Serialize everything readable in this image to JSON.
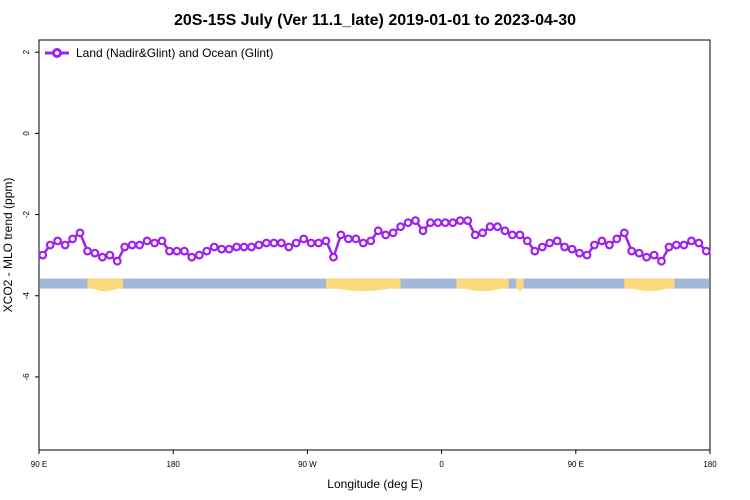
{
  "chart_data": {
    "type": "line",
    "title": "20S-15S July (Ver 11.1_late)   2019-01-01 to 2023-04-30",
    "xlabel": "Longitude (deg E)",
    "ylabel": "XCO2 - MLO trend (ppm)",
    "xlim": [
      90,
      450
    ],
    "ylim": [
      -7.8,
      2.3
    ],
    "x_ticks": [
      {
        "value": 90,
        "label": "90 E"
      },
      {
        "value": 162,
        "label": "180"
      },
      {
        "value": 234,
        "label": "90 W"
      },
      {
        "value": 306,
        "label": "0"
      },
      {
        "value": 378,
        "label": "90 E"
      },
      {
        "value": 450,
        "label": "180"
      }
    ],
    "y_ticks": [
      2,
      0,
      -2,
      -4,
      -6
    ],
    "legend": {
      "position": "top-left",
      "label": "Land (Nadir&Glint) and Ocean (Glint)"
    },
    "series": [
      {
        "name": "Land (Nadir&Glint) and Ocean (Glint)",
        "color": "#a020f0",
        "x": [
          92,
          96,
          100,
          104,
          108,
          112,
          116,
          120,
          124,
          128,
          132,
          136,
          140,
          144,
          148,
          152,
          156,
          160,
          164,
          168,
          172,
          176,
          180,
          184,
          188,
          192,
          196,
          200,
          204,
          208,
          212,
          216,
          220,
          224,
          228,
          232,
          236,
          240,
          244,
          248,
          252,
          256,
          260,
          264,
          268,
          272,
          276,
          280,
          284,
          288,
          292,
          296,
          300,
          304,
          308,
          312,
          316,
          320,
          324,
          328,
          332,
          336,
          340,
          344,
          348,
          352,
          356,
          360,
          364,
          368,
          372,
          376,
          380,
          384,
          388,
          392,
          396,
          400,
          404,
          408,
          412,
          416,
          420,
          424,
          428,
          432,
          436,
          440,
          444,
          448
        ],
        "y": [
          -3.0,
          -2.75,
          -2.65,
          -2.75,
          -2.6,
          -2.45,
          -2.9,
          -2.95,
          -3.05,
          -3.0,
          -3.15,
          -2.8,
          -2.75,
          -2.75,
          -2.65,
          -2.7,
          -2.65,
          -2.9,
          -2.9,
          -2.9,
          -3.05,
          -3.0,
          -2.9,
          -2.8,
          -2.85,
          -2.85,
          -2.8,
          -2.8,
          -2.8,
          -2.75,
          -2.7,
          -2.7,
          -2.7,
          -2.8,
          -2.7,
          -2.6,
          -2.7,
          -2.7,
          -2.65,
          -3.05,
          -2.5,
          -2.6,
          -2.6,
          -2.7,
          -2.65,
          -2.4,
          -2.5,
          -2.45,
          -2.3,
          -2.2,
          -2.15,
          -2.4,
          -2.2,
          -2.2,
          -2.2,
          -2.2,
          -2.15,
          -2.15,
          -2.5,
          -2.45,
          -2.3,
          -2.3,
          -2.4,
          -2.5,
          -2.5,
          -2.65,
          -2.9,
          -2.8,
          -2.7,
          -2.65,
          -2.8,
          -2.85,
          -2.95,
          -3.0,
          -2.75,
          -2.65,
          -2.75,
          -2.6,
          -2.45,
          -2.9,
          -2.95,
          -3.05,
          -3.0,
          -3.15,
          -2.8,
          -2.75,
          -2.75,
          -2.65,
          -2.7,
          -2.9
        ]
      }
    ],
    "surface_band": {
      "y": -3.7,
      "ocean_color": "#a3b8d8",
      "land_color": "#fcd97d",
      "land_segments": [
        [
          116,
          135
        ],
        [
          244,
          284
        ],
        [
          314,
          342
        ],
        [
          346,
          350
        ],
        [
          404,
          431
        ]
      ]
    }
  }
}
